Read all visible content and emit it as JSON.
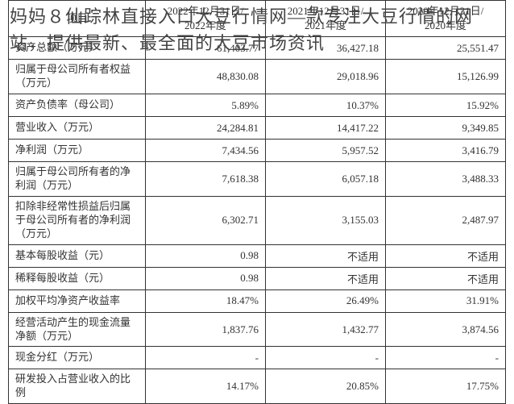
{
  "overlay": {
    "text": "妈妈８仙踪林直接入口大豆行情网―款专注大豆行情的网站，提供最新、最全面的大豆市场资讯"
  },
  "table": {
    "header": {
      "col1": "项目",
      "col2_line1": "2022年12月31日/",
      "col2_line2": "2022年度",
      "col3_line1": "2021年12月31日/",
      "col3_line2": "2021年度",
      "col4_line1": "2020年12月31日/",
      "col4_line2": "2020年度"
    },
    "rows": [
      {
        "label": "资产总额（万元）",
        "v2022": "61,403.77",
        "v2021": "36,427.18",
        "v2020": "25,551.47"
      },
      {
        "label": "归属于母公司所有者权益（万元）",
        "v2022": "48,830.08",
        "v2021": "29,018.96",
        "v2020": "15,126.99"
      },
      {
        "label": "资产负债率（母公司）",
        "v2022": "5.89%",
        "v2021": "10.37%",
        "v2020": "15.92%"
      },
      {
        "label": "营业收入（万元）",
        "v2022": "24,284.81",
        "v2021": "14,417.22",
        "v2020": "9,349.85"
      },
      {
        "label": "净利润（万元）",
        "v2022": "7,434.56",
        "v2021": "5,957.52",
        "v2020": "3,416.79"
      },
      {
        "label": "归属于母公司所有者的净利润（万元）",
        "v2022": "7,618.38",
        "v2021": "6,057.18",
        "v2020": "3,488.33"
      },
      {
        "label": "扣除非经常性损益后归属于母公司所有者的净利润（万元）",
        "v2022": "6,302.71",
        "v2021": "3,155.03",
        "v2020": "2,487.97"
      },
      {
        "label": "基本每股收益（元）",
        "v2022": "0.98",
        "v2021": "不适用",
        "v2020": "不适用"
      },
      {
        "label": "稀释每股收益（元）",
        "v2022": "0.98",
        "v2021": "不适用",
        "v2020": "不适用"
      },
      {
        "label": "加权平均净资产收益率",
        "v2022": "18.47%",
        "v2021": "26.49%",
        "v2020": "31.91%"
      },
      {
        "label": "经营活动产生的现金流量净额（万元）",
        "v2022": "1,837.76",
        "v2021": "1,432.77",
        "v2020": "3,874.56"
      },
      {
        "label": "现金分红（万元）",
        "v2022": "-",
        "v2021": "-",
        "v2020": "-"
      },
      {
        "label": "研发投入占营业收入的比例",
        "v2022": "14.17%",
        "v2021": "20.85%",
        "v2020": "17.75%"
      }
    ]
  }
}
